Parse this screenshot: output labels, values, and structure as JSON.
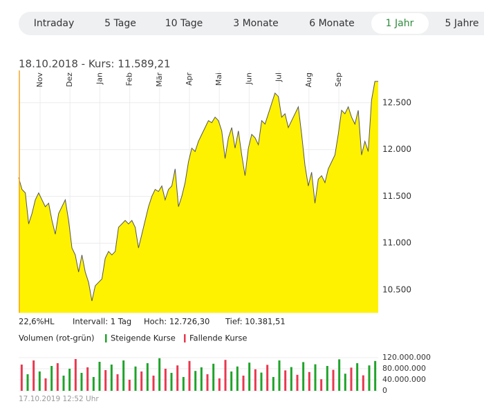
{
  "tabs": [
    {
      "label": "Intraday"
    },
    {
      "label": "5 Tage"
    },
    {
      "label": "10 Tage"
    },
    {
      "label": "3 Monate"
    },
    {
      "label": "6 Monate"
    },
    {
      "label": "1 Jahr",
      "active": true
    },
    {
      "label": "5 Jahre"
    }
  ],
  "quote": "18.10.2018  -  Kurs: 11.589,21",
  "stats": [
    "22,6%HL",
    "Intervall: 1 Tag",
    "Hoch: 12.726,30",
    "Tief: 10.381,51"
  ],
  "timestamp": "17.10.2019 12:52 Uhr",
  "chart_data": [
    {
      "type": "area",
      "xtick_labels": [
        "Nov",
        "Dez",
        "Jan",
        "Feb",
        "Mär",
        "Apr",
        "Mai",
        "Jun",
        "Jul",
        "Aug",
        "Sep"
      ],
      "values": [
        11700,
        11574,
        11537,
        11206,
        11317,
        11463,
        11537,
        11463,
        11390,
        11427,
        11243,
        11096,
        11317,
        11390,
        11463,
        11243,
        10949,
        10875,
        10692,
        10875,
        10692,
        10582,
        10383,
        10545,
        10582,
        10618,
        10839,
        10912,
        10875,
        10912,
        11170,
        11206,
        11243,
        11206,
        11243,
        11170,
        10949,
        11096,
        11243,
        11390,
        11500,
        11574,
        11552,
        11611,
        11463,
        11574,
        11611,
        11794,
        11390,
        11500,
        11647,
        11868,
        12015,
        11979,
        12088,
        12162,
        12235,
        12309,
        12287,
        12346,
        12309,
        12199,
        11905,
        12126,
        12235,
        12015,
        12199,
        11942,
        11721,
        12015,
        12162,
        12126,
        12052,
        12309,
        12272,
        12382,
        12493,
        12603,
        12566,
        12346,
        12382,
        12235,
        12309,
        12382,
        12456,
        12162,
        11831,
        11611,
        11758,
        11427,
        11684,
        11721,
        11647,
        11794,
        11868,
        11942,
        12162,
        12419,
        12382,
        12456,
        12346,
        12272,
        12419,
        11942,
        12088,
        11979,
        12529,
        12728,
        12728
      ],
      "color": "#fff200",
      "line_color": "#555555",
      "grid": true,
      "ylim": [
        10257,
        12845
      ],
      "yticks": [
        {
          "value": 10500,
          "label": "10.500"
        },
        {
          "value": 11000,
          "label": "11.000"
        },
        {
          "value": 11500,
          "label": "11.500"
        },
        {
          "value": 12000,
          "label": "12.000"
        },
        {
          "value": 12500,
          "label": "12.500"
        }
      ]
    },
    {
      "type": "bar",
      "title": "Volumen (rot-grün)",
      "series": [
        {
          "name": "Steigende Kurse",
          "color": "#1fa32a",
          "values": [
            null,
            60000000,
            null,
            70000000,
            null,
            90000000,
            null,
            55000000,
            80000000,
            null,
            65000000,
            null,
            50000000,
            105000000,
            null,
            95000000,
            null,
            110000000,
            null,
            88000000,
            null,
            100000000,
            null,
            118000000,
            null,
            65000000,
            null,
            50000000,
            null,
            72000000,
            85000000,
            null,
            98000000,
            null,
            null,
            70000000,
            88000000,
            null,
            102000000,
            null,
            66000000,
            null,
            50000000,
            110000000,
            null,
            86000000,
            null,
            104000000,
            null,
            96000000,
            null,
            90000000,
            null,
            114000000,
            62000000,
            null,
            100000000,
            null,
            92000000,
            108000000
          ]
        },
        {
          "name": "Fallende Kurse",
          "color": "#e8384f",
          "values": [
            95000000,
            null,
            110000000,
            null,
            45000000,
            null,
            100000000,
            null,
            null,
            115000000,
            null,
            85000000,
            null,
            null,
            75000000,
            null,
            60000000,
            null,
            40000000,
            null,
            70000000,
            null,
            55000000,
            null,
            80000000,
            null,
            92000000,
            null,
            108000000,
            null,
            null,
            60000000,
            null,
            45000000,
            112000000,
            null,
            null,
            55000000,
            null,
            78000000,
            null,
            94000000,
            null,
            null,
            74000000,
            null,
            58000000,
            null,
            68000000,
            null,
            42000000,
            null,
            76000000,
            null,
            null,
            84000000,
            null,
            56000000,
            null,
            null
          ]
        }
      ],
      "ylim": [
        0,
        145000000
      ],
      "yticks": [
        0,
        {
          "value": 40000000,
          "label": "40.000.000"
        },
        {
          "value": 80000000,
          "label": "80.000.000"
        },
        {
          "value": 120000000,
          "label": "120.000.000"
        }
      ]
    }
  ]
}
